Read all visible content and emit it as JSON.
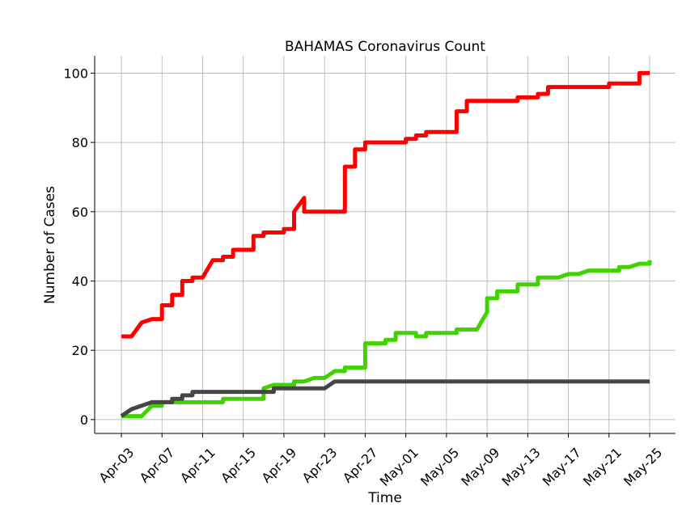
{
  "chart_data": {
    "type": "line",
    "title": "BAHAMAS Coronavirus Count",
    "xlabel": "Time",
    "ylabel": "Number of Cases",
    "x_start": "2020-04-03",
    "x_end": "2020-05-25",
    "xtick_labels": [
      "Apr-03",
      "Apr-07",
      "Apr-11",
      "Apr-15",
      "Apr-19",
      "Apr-23",
      "Apr-27",
      "May-01",
      "May-05",
      "May-09",
      "May-13",
      "May-17",
      "May-21",
      "May-25"
    ],
    "xticks": [
      "2020-04-03",
      "2020-04-07",
      "2020-04-11",
      "2020-04-15",
      "2020-04-19",
      "2020-04-23",
      "2020-04-27",
      "2020-05-01",
      "2020-05-05",
      "2020-05-09",
      "2020-05-13",
      "2020-05-17",
      "2020-05-21",
      "2020-05-25"
    ],
    "yticks": [
      0,
      20,
      40,
      60,
      80,
      100
    ],
    "ylim": [
      -4,
      105
    ],
    "grid": true,
    "series": [
      {
        "color": "#ff0000",
        "points": [
          [
            "2020-04-03",
            24
          ],
          [
            "2020-04-04",
            24
          ],
          [
            "2020-04-05",
            28
          ],
          [
            "2020-04-06",
            29
          ],
          [
            "2020-04-07",
            29
          ],
          [
            "2020-04-07",
            33
          ],
          [
            "2020-04-08",
            33
          ],
          [
            "2020-04-08",
            36
          ],
          [
            "2020-04-09",
            36
          ],
          [
            "2020-04-09",
            40
          ],
          [
            "2020-04-10",
            40
          ],
          [
            "2020-04-10",
            41
          ],
          [
            "2020-04-11",
            41
          ],
          [
            "2020-04-12",
            46
          ],
          [
            "2020-04-13",
            46
          ],
          [
            "2020-04-13",
            47
          ],
          [
            "2020-04-14",
            47
          ],
          [
            "2020-04-14",
            49
          ],
          [
            "2020-04-16",
            49
          ],
          [
            "2020-04-16",
            53
          ],
          [
            "2020-04-17",
            53
          ],
          [
            "2020-04-17",
            54
          ],
          [
            "2020-04-19",
            54
          ],
          [
            "2020-04-19",
            55
          ],
          [
            "2020-04-20",
            55
          ],
          [
            "2020-04-20",
            60
          ],
          [
            "2020-04-21",
            64
          ],
          [
            "2020-04-21",
            60
          ],
          [
            "2020-04-25",
            60
          ],
          [
            "2020-04-25",
            73
          ],
          [
            "2020-04-26",
            73
          ],
          [
            "2020-04-26",
            78
          ],
          [
            "2020-04-27",
            78
          ],
          [
            "2020-04-27",
            80
          ],
          [
            "2020-05-01",
            80
          ],
          [
            "2020-05-01",
            81
          ],
          [
            "2020-05-02",
            81
          ],
          [
            "2020-05-02",
            82
          ],
          [
            "2020-05-03",
            82
          ],
          [
            "2020-05-03",
            83
          ],
          [
            "2020-05-06",
            83
          ],
          [
            "2020-05-06",
            89
          ],
          [
            "2020-05-07",
            89
          ],
          [
            "2020-05-07",
            92
          ],
          [
            "2020-05-12",
            92
          ],
          [
            "2020-05-12",
            93
          ],
          [
            "2020-05-14",
            93
          ],
          [
            "2020-05-14",
            94
          ],
          [
            "2020-05-15",
            94
          ],
          [
            "2020-05-15",
            96
          ],
          [
            "2020-05-21",
            96
          ],
          [
            "2020-05-21",
            97
          ],
          [
            "2020-05-24",
            97
          ],
          [
            "2020-05-24",
            100
          ],
          [
            "2020-05-25",
            100
          ]
        ]
      },
      {
        "color": "#3fd400",
        "points": [
          [
            "2020-04-03",
            1
          ],
          [
            "2020-04-05",
            1
          ],
          [
            "2020-04-06",
            4
          ],
          [
            "2020-04-07",
            4
          ],
          [
            "2020-04-07",
            5
          ],
          [
            "2020-04-13",
            5
          ],
          [
            "2020-04-13",
            6
          ],
          [
            "2020-04-17",
            6
          ],
          [
            "2020-04-17",
            9
          ],
          [
            "2020-04-18",
            10
          ],
          [
            "2020-04-20",
            10
          ],
          [
            "2020-04-20",
            11
          ],
          [
            "2020-04-21",
            11
          ],
          [
            "2020-04-22",
            12
          ],
          [
            "2020-04-23",
            12
          ],
          [
            "2020-04-24",
            14
          ],
          [
            "2020-04-25",
            14
          ],
          [
            "2020-04-25",
            15
          ],
          [
            "2020-04-27",
            15
          ],
          [
            "2020-04-27",
            22
          ],
          [
            "2020-04-29",
            22
          ],
          [
            "2020-04-29",
            23
          ],
          [
            "2020-04-30",
            23
          ],
          [
            "2020-04-30",
            25
          ],
          [
            "2020-05-02",
            25
          ],
          [
            "2020-05-02",
            24
          ],
          [
            "2020-05-03",
            24
          ],
          [
            "2020-05-03",
            25
          ],
          [
            "2020-05-06",
            25
          ],
          [
            "2020-05-06",
            26
          ],
          [
            "2020-05-08",
            26
          ],
          [
            "2020-05-09",
            31
          ],
          [
            "2020-05-09",
            35
          ],
          [
            "2020-05-10",
            35
          ],
          [
            "2020-05-10",
            37
          ],
          [
            "2020-05-12",
            37
          ],
          [
            "2020-05-12",
            39
          ],
          [
            "2020-05-14",
            39
          ],
          [
            "2020-05-14",
            41
          ],
          [
            "2020-05-16",
            41
          ],
          [
            "2020-05-17",
            42
          ],
          [
            "2020-05-18",
            42
          ],
          [
            "2020-05-19",
            43
          ],
          [
            "2020-05-22",
            43
          ],
          [
            "2020-05-22",
            44
          ],
          [
            "2020-05-23",
            44
          ],
          [
            "2020-05-24",
            45
          ],
          [
            "2020-05-25",
            45
          ],
          [
            "2020-05-25",
            46
          ]
        ]
      },
      {
        "color": "#464646",
        "points": [
          [
            "2020-04-03",
            1
          ],
          [
            "2020-04-04",
            3
          ],
          [
            "2020-04-06",
            5
          ],
          [
            "2020-04-08",
            5
          ],
          [
            "2020-04-08",
            6
          ],
          [
            "2020-04-09",
            6
          ],
          [
            "2020-04-09",
            7
          ],
          [
            "2020-04-10",
            7
          ],
          [
            "2020-04-10",
            8
          ],
          [
            "2020-04-18",
            8
          ],
          [
            "2020-04-18",
            9
          ],
          [
            "2020-04-23",
            9
          ],
          [
            "2020-04-24",
            11
          ],
          [
            "2020-05-25",
            11
          ]
        ]
      }
    ]
  }
}
